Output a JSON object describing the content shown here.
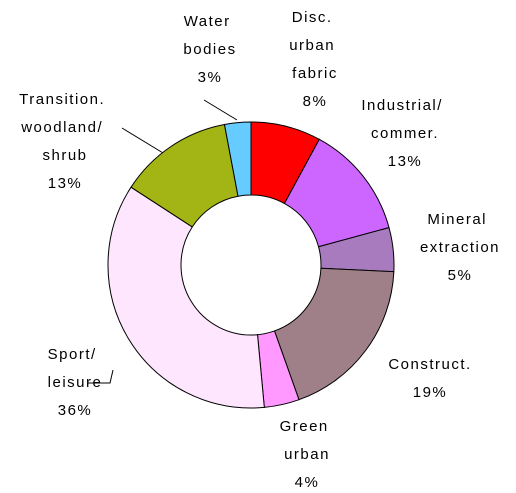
{
  "chart_data": {
    "type": "donut",
    "categories": [
      "Disc. urban fabric",
      "Industrial/ commer.",
      "Mineral extraction",
      "Construct.",
      "Green urban",
      "Sport/ leisure",
      "Transition. woodland/ shrub",
      "Water bodies"
    ],
    "values": [
      8,
      13,
      5,
      19,
      4,
      36,
      13,
      3
    ],
    "value_labels": [
      "8%",
      "13%",
      "5%",
      "19%",
      "4%",
      "36%",
      "13%",
      "3%"
    ],
    "colors": [
      "#ff0000",
      "#cc66ff",
      "#a87bbf",
      "#a08088",
      "#ff99ff",
      "#ffe6ff",
      "#a3b514",
      "#66ccff"
    ]
  }
}
